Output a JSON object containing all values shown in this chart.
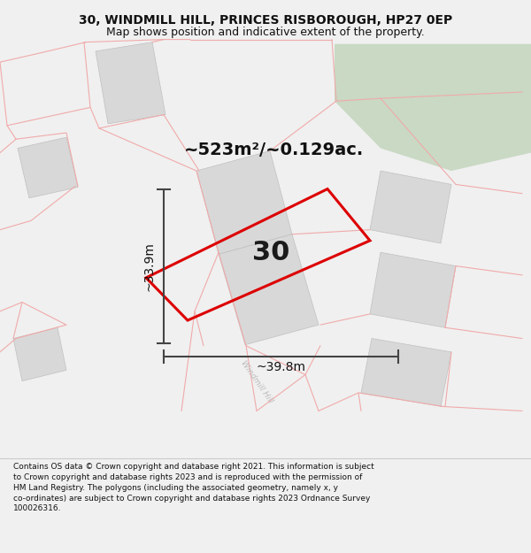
{
  "title_line1": "30, WINDMILL HILL, PRINCES RISBOROUGH, HP27 0EP",
  "title_line2": "Map shows position and indicative extent of the property.",
  "footer_text": "Contains OS data © Crown copyright and database right 2021. This information is subject to Crown copyright and database rights 2023 and is reproduced with the permission of HM Land Registry. The polygons (including the associated geometry, namely x, y co-ordinates) are subject to Crown copyright and database rights 2023 Ordnance Survey 100026316.",
  "area_label": "~523m²/~0.129ac.",
  "width_label": "~39.8m",
  "height_label": "~33.9m",
  "plot_number": "30",
  "bg_color": "#f0f0f0",
  "map_bg": "#ffffff",
  "pink_line": "#f0aaaa",
  "red_plot": "#dd0000",
  "green_area": "#c9d9c4",
  "gray_building": "#d8d8d8",
  "gray_building_edge": "#c0c0c0",
  "dim_color": "#444444",
  "road_text_color": "#bbbbbb",
  "title_fontsize": 10,
  "subtitle_fontsize": 9,
  "footer_fontsize": 6.5,
  "area_fontsize": 14,
  "number_fontsize": 22,
  "dim_fontsize": 10
}
